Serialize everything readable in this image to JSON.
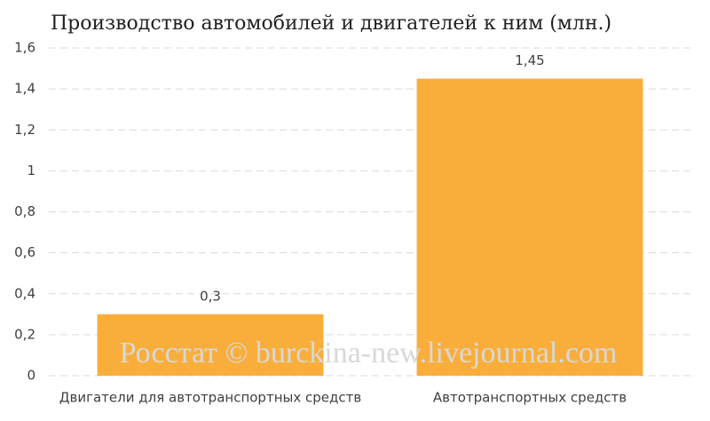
{
  "chart_data": {
    "type": "bar",
    "title": "Производство автомобилей и двигателей к ним (млн.)",
    "categories": [
      "Двигатели для автотранспортных средств",
      "Автотранспортных средств"
    ],
    "values": [
      0.3,
      1.45
    ],
    "value_labels": [
      "0,3",
      "1,45"
    ],
    "color": "#f9ae3b",
    "ylim": [
      0,
      1.6
    ],
    "yticks": [
      0,
      {
        "value": 0.2,
        "label": "0,2"
      },
      {
        "value": 0.4,
        "label": "0,4"
      },
      {
        "value": 0.6,
        "label": "0,6"
      },
      {
        "value": 0.8,
        "label": "0,8"
      },
      1,
      {
        "value": 1.2,
        "label": "1,2"
      },
      {
        "value": 1.4,
        "label": "1,4"
      },
      {
        "value": 1.6,
        "label": "1,6"
      }
    ],
    "grid": true,
    "annotation": "Росстат © burckina-new.livejournal.com"
  }
}
